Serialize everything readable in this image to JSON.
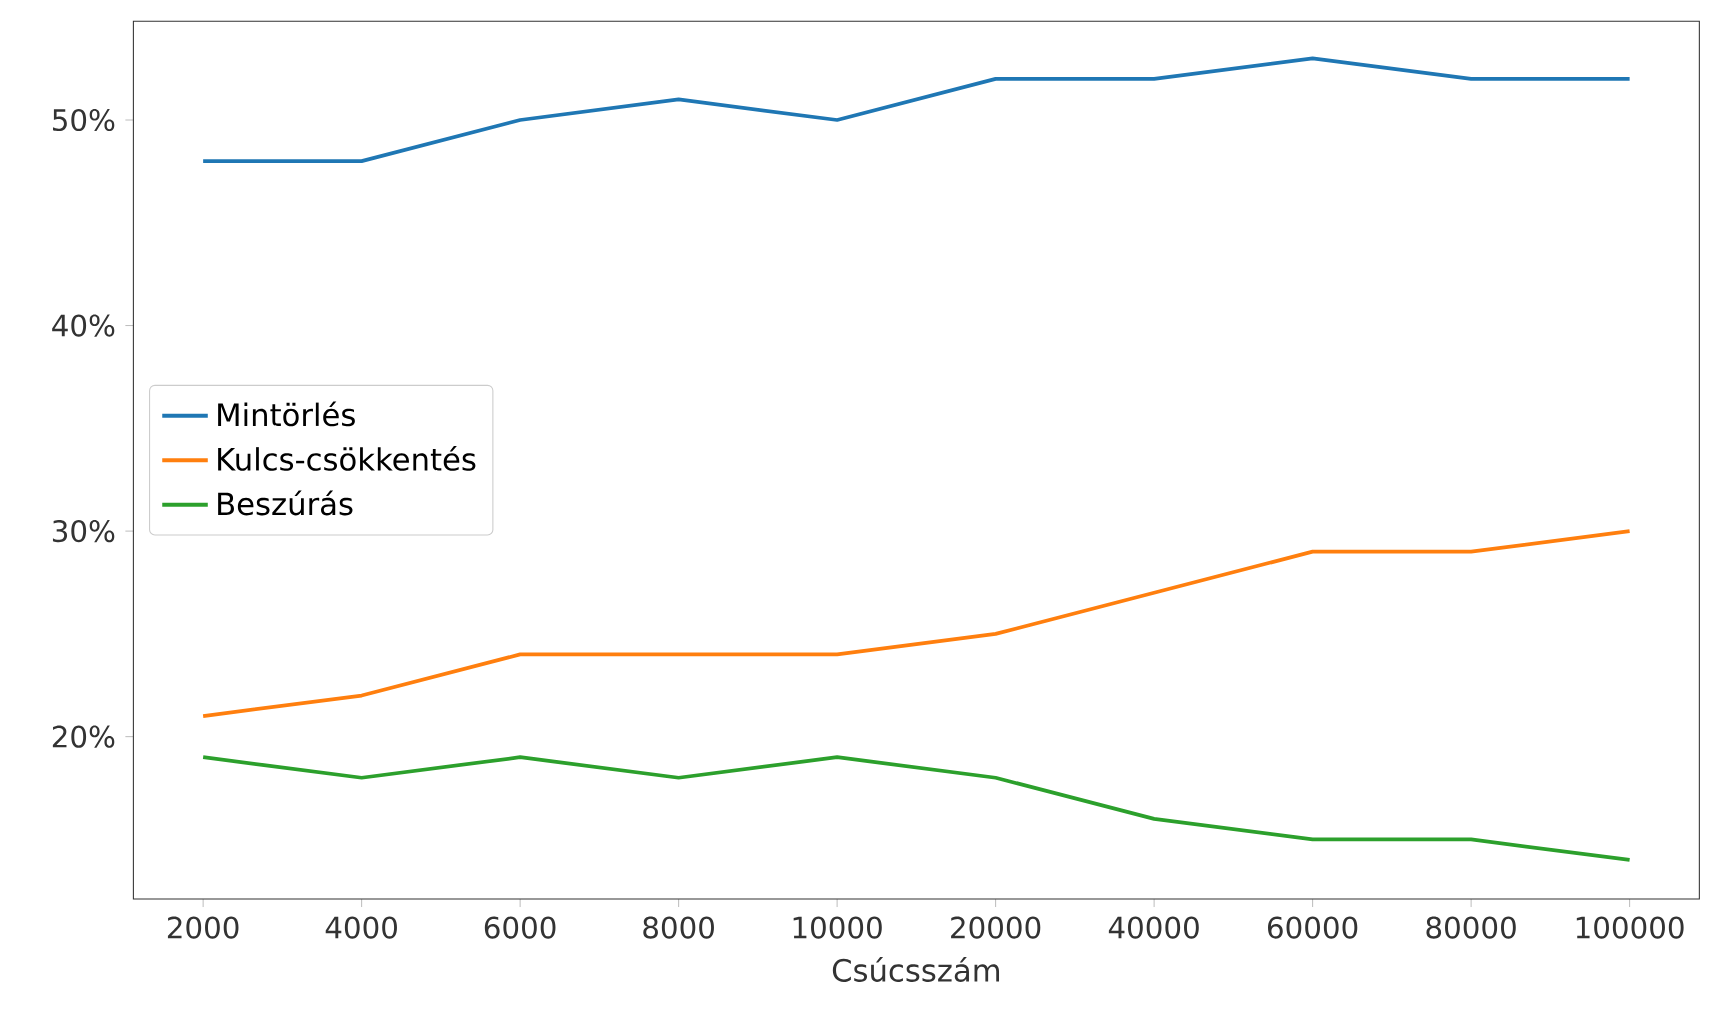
{
  "chart_data": {
    "type": "line",
    "xlabel": "Csúcsszám",
    "categories": [
      "2000",
      "4000",
      "6000",
      "8000",
      "10000",
      "20000",
      "40000",
      "60000",
      "80000",
      "100000"
    ],
    "series": [
      {
        "name": "Mintörlés",
        "color": "#1f77b4",
        "values": [
          48,
          48,
          50,
          51,
          50,
          52,
          52,
          53,
          52,
          52
        ]
      },
      {
        "name": "Kulcs-csökkentés",
        "color": "#ff7f0e",
        "values": [
          21,
          22,
          24,
          24,
          24,
          25,
          27,
          29,
          29,
          30
        ]
      },
      {
        "name": "Beszúrás",
        "color": "#2ca02c",
        "values": [
          19,
          18,
          19,
          18,
          19,
          18,
          16,
          15,
          15,
          14
        ]
      }
    ],
    "ylim": [
      12.1,
      54.8
    ],
    "yticks": [
      {
        "value": 20,
        "label": "20%"
      },
      {
        "value": 30,
        "label": "30%"
      },
      {
        "value": 40,
        "label": "40%"
      },
      {
        "value": 50,
        "label": "50%"
      }
    ],
    "legend": "left",
    "grid": false,
    "marker": "none",
    "line_style": "solid"
  }
}
